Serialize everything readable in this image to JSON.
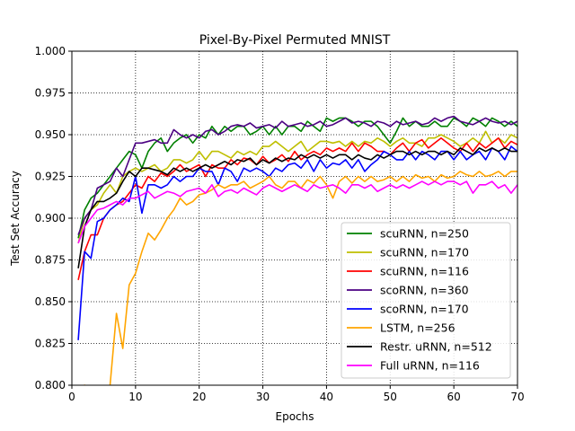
{
  "chart_data": {
    "type": "line",
    "title": "Pixel-By-Pixel Permuted MNIST",
    "xlabel": "Epochs",
    "ylabel": "Test Set Accuracy",
    "xlim": [
      0,
      70
    ],
    "ylim": [
      0.8,
      1.0
    ],
    "xticks": [
      0,
      10,
      20,
      30,
      40,
      50,
      60,
      70
    ],
    "yticks": [
      0.8,
      0.825,
      0.85,
      0.875,
      0.9,
      0.925,
      0.95,
      0.975,
      1.0
    ],
    "xtick_labels": [
      "0",
      "10",
      "20",
      "30",
      "40",
      "50",
      "60",
      "70"
    ],
    "ytick_labels": [
      "0.800",
      "0.825",
      "0.850",
      "0.875",
      "0.900",
      "0.925",
      "0.950",
      "0.975",
      "1.000"
    ],
    "grid": true,
    "grid_style": "dotted",
    "legend_position": "lower-right",
    "series": [
      {
        "name": "scuRNN, n=250",
        "color": "#008000",
        "values": [
          0.888,
          0.905,
          0.912,
          0.915,
          0.92,
          0.925,
          0.93,
          0.935,
          0.94,
          0.938,
          0.93,
          0.94,
          0.945,
          0.948,
          0.94,
          0.945,
          0.948,
          0.95,
          0.945,
          0.95,
          0.948,
          0.955,
          0.95,
          0.955,
          0.952,
          0.955,
          0.955,
          0.95,
          0.952,
          0.955,
          0.95,
          0.955,
          0.95,
          0.955,
          0.955,
          0.952,
          0.958,
          0.955,
          0.952,
          0.96,
          0.958,
          0.96,
          0.96,
          0.958,
          0.955,
          0.958,
          0.958,
          0.955,
          0.95,
          0.945,
          0.952,
          0.96,
          0.955,
          0.958,
          0.955,
          0.955,
          0.958,
          0.955,
          0.955,
          0.96,
          0.958,
          0.955,
          0.96,
          0.958,
          0.955,
          0.96,
          0.958,
          0.955,
          0.958,
          0.955
        ]
      },
      {
        "name": "scuRNN, n=170",
        "color": "#bfbf00",
        "values": [
          0.885,
          0.9,
          0.905,
          0.908,
          0.915,
          0.92,
          0.915,
          0.925,
          0.928,
          0.93,
          0.928,
          0.93,
          0.932,
          0.928,
          0.93,
          0.935,
          0.935,
          0.933,
          0.935,
          0.94,
          0.935,
          0.94,
          0.94,
          0.938,
          0.936,
          0.94,
          0.938,
          0.94,
          0.938,
          0.943,
          0.943,
          0.946,
          0.943,
          0.94,
          0.943,
          0.946,
          0.94,
          0.943,
          0.946,
          0.946,
          0.945,
          0.946,
          0.943,
          0.946,
          0.943,
          0.946,
          0.945,
          0.948,
          0.946,
          0.943,
          0.946,
          0.948,
          0.945,
          0.945,
          0.943,
          0.948,
          0.948,
          0.95,
          0.948,
          0.946,
          0.943,
          0.945,
          0.948,
          0.945,
          0.952,
          0.945,
          0.948,
          0.945,
          0.95,
          0.948
        ]
      },
      {
        "name": "scuRNN, n=116",
        "color": "#ff0000",
        "values": [
          0.863,
          0.88,
          0.89,
          0.89,
          0.9,
          0.905,
          0.908,
          0.91,
          0.915,
          0.92,
          0.918,
          0.925,
          0.922,
          0.927,
          0.925,
          0.928,
          0.932,
          0.928,
          0.93,
          0.932,
          0.925,
          0.932,
          0.93,
          0.93,
          0.935,
          0.932,
          0.936,
          0.935,
          0.932,
          0.937,
          0.933,
          0.935,
          0.938,
          0.934,
          0.94,
          0.935,
          0.938,
          0.94,
          0.938,
          0.942,
          0.94,
          0.942,
          0.94,
          0.945,
          0.94,
          0.945,
          0.943,
          0.94,
          0.94,
          0.938,
          0.942,
          0.945,
          0.94,
          0.945,
          0.947,
          0.942,
          0.945,
          0.948,
          0.945,
          0.942,
          0.94,
          0.945,
          0.94,
          0.945,
          0.942,
          0.945,
          0.948,
          0.942,
          0.946,
          0.944
        ]
      },
      {
        "name": "scoRNN, n=360",
        "color": "#4b0082",
        "values": [
          0.89,
          0.9,
          0.905,
          0.918,
          0.92,
          0.922,
          0.93,
          0.925,
          0.935,
          0.945,
          0.945,
          0.946,
          0.947,
          0.945,
          0.945,
          0.953,
          0.95,
          0.948,
          0.95,
          0.948,
          0.952,
          0.953,
          0.95,
          0.952,
          0.955,
          0.956,
          0.955,
          0.957,
          0.954,
          0.955,
          0.956,
          0.954,
          0.958,
          0.955,
          0.956,
          0.957,
          0.955,
          0.956,
          0.958,
          0.955,
          0.956,
          0.958,
          0.96,
          0.957,
          0.958,
          0.957,
          0.955,
          0.958,
          0.957,
          0.955,
          0.958,
          0.956,
          0.957,
          0.958,
          0.956,
          0.957,
          0.96,
          0.958,
          0.96,
          0.961,
          0.958,
          0.957,
          0.956,
          0.958,
          0.96,
          0.958,
          0.957,
          0.958,
          0.956,
          0.958
        ]
      },
      {
        "name": "scoRNN, n=170",
        "color": "#0000ff",
        "values": [
          0.827,
          0.88,
          0.876,
          0.898,
          0.9,
          0.905,
          0.908,
          0.912,
          0.91,
          0.925,
          0.903,
          0.92,
          0.92,
          0.918,
          0.92,
          0.925,
          0.922,
          0.925,
          0.925,
          0.93,
          0.928,
          0.928,
          0.92,
          0.93,
          0.928,
          0.922,
          0.93,
          0.928,
          0.93,
          0.928,
          0.925,
          0.93,
          0.928,
          0.932,
          0.933,
          0.93,
          0.935,
          0.928,
          0.935,
          0.93,
          0.933,
          0.932,
          0.935,
          0.93,
          0.935,
          0.928,
          0.932,
          0.935,
          0.94,
          0.938,
          0.935,
          0.935,
          0.94,
          0.935,
          0.94,
          0.938,
          0.935,
          0.94,
          0.94,
          0.935,
          0.94,
          0.935,
          0.938,
          0.94,
          0.935,
          0.942,
          0.94,
          0.935,
          0.943,
          0.94
        ]
      },
      {
        "name": "LSTM, n=256",
        "color": "#ffa500",
        "values": [
          0.791,
          0.8,
          0.79,
          0.78,
          0.77,
          0.8,
          0.843,
          0.822,
          0.86,
          0.867,
          0.88,
          0.891,
          0.887,
          0.893,
          0.9,
          0.905,
          0.912,
          0.908,
          0.91,
          0.914,
          0.915,
          0.917,
          0.92,
          0.918,
          0.92,
          0.92,
          0.922,
          0.918,
          0.92,
          0.922,
          0.925,
          0.92,
          0.918,
          0.922,
          0.922,
          0.918,
          0.923,
          0.921,
          0.925,
          0.92,
          0.912,
          0.922,
          0.925,
          0.921,
          0.925,
          0.922,
          0.925,
          0.922,
          0.923,
          0.925,
          0.922,
          0.925,
          0.922,
          0.926,
          0.924,
          0.925,
          0.922,
          0.926,
          0.924,
          0.925,
          0.928,
          0.926,
          0.925,
          0.928,
          0.925,
          0.926,
          0.928,
          0.925,
          0.928,
          0.928
        ]
      },
      {
        "name": "Restr. uRNN, n=512",
        "color": "#000000",
        "values": [
          0.87,
          0.895,
          0.905,
          0.91,
          0.91,
          0.912,
          0.915,
          0.922,
          0.928,
          0.925,
          0.93,
          0.93,
          0.929,
          0.928,
          0.926,
          0.93,
          0.928,
          0.93,
          0.928,
          0.93,
          0.932,
          0.93,
          0.932,
          0.934,
          0.932,
          0.935,
          0.934,
          0.936,
          0.932,
          0.935,
          0.933,
          0.936,
          0.934,
          0.936,
          0.935,
          0.938,
          0.936,
          0.938,
          0.936,
          0.938,
          0.936,
          0.938,
          0.938,
          0.935,
          0.938,
          0.936,
          0.935,
          0.938,
          0.936,
          0.938,
          0.94,
          0.94,
          0.938,
          0.94,
          0.938,
          0.94,
          0.94,
          0.938,
          0.94,
          0.938,
          0.942,
          0.94,
          0.938,
          0.942,
          0.94,
          0.942,
          0.94,
          0.942,
          0.94,
          0.94
        ]
      },
      {
        "name": "Full uRNN, n=116",
        "color": "#ff00ff",
        "values": [
          0.885,
          0.895,
          0.9,
          0.905,
          0.906,
          0.908,
          0.91,
          0.908,
          0.912,
          0.912,
          0.914,
          0.916,
          0.912,
          0.914,
          0.916,
          0.915,
          0.913,
          0.916,
          0.917,
          0.918,
          0.915,
          0.92,
          0.913,
          0.916,
          0.917,
          0.915,
          0.918,
          0.916,
          0.914,
          0.918,
          0.92,
          0.918,
          0.916,
          0.918,
          0.92,
          0.918,
          0.916,
          0.92,
          0.918,
          0.919,
          0.92,
          0.918,
          0.915,
          0.92,
          0.92,
          0.918,
          0.92,
          0.916,
          0.918,
          0.92,
          0.918,
          0.92,
          0.918,
          0.92,
          0.922,
          0.92,
          0.922,
          0.92,
          0.922,
          0.922,
          0.92,
          0.922,
          0.915,
          0.92,
          0.92,
          0.922,
          0.918,
          0.92,
          0.915,
          0.92
        ]
      }
    ]
  }
}
